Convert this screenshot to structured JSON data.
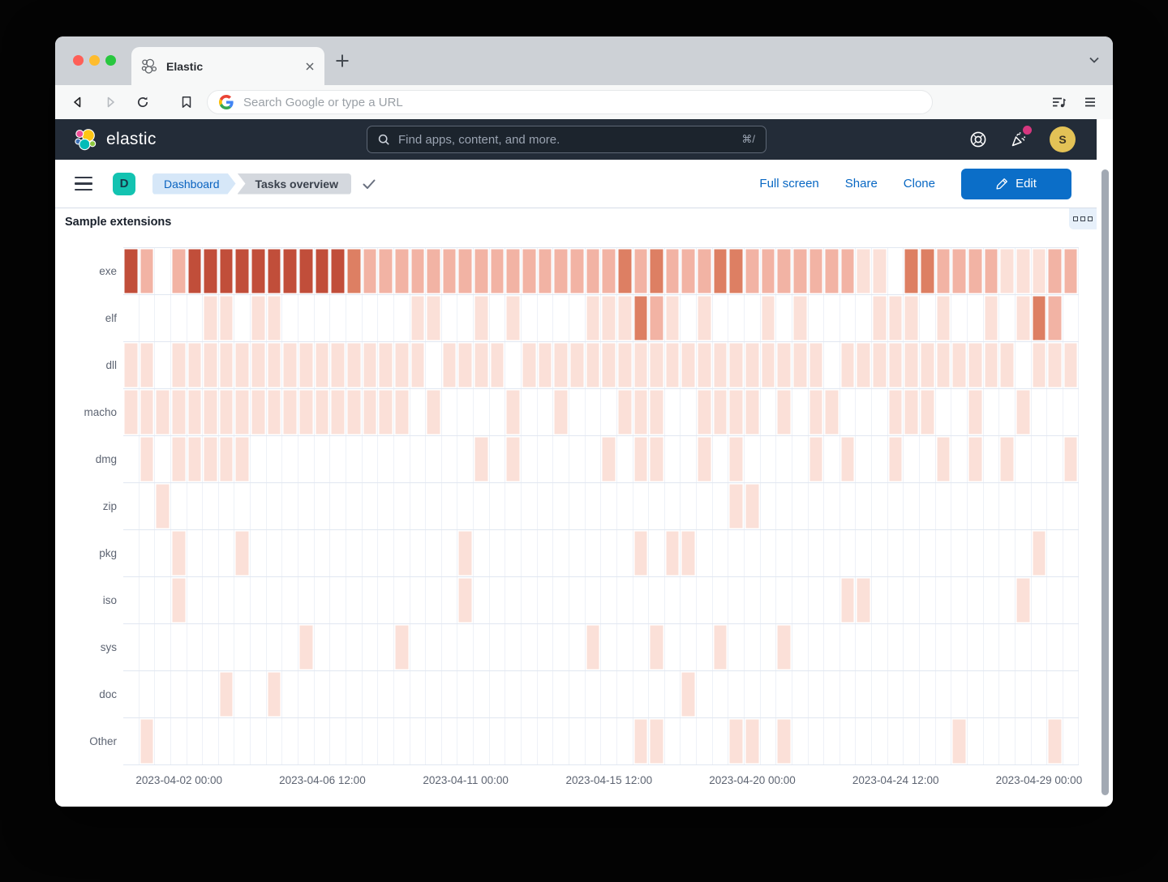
{
  "browser": {
    "tab_title": "Elastic",
    "address_placeholder": "Search Google or type a URL"
  },
  "elastic_header": {
    "brand": "elastic",
    "search_placeholder": "Find apps, content, and more.",
    "search_shortcut": "⌘/",
    "avatar_initial": "S"
  },
  "dashboard_bar": {
    "space_initial": "D",
    "breadcrumbs": [
      "Dashboard",
      "Tasks overview"
    ],
    "actions": [
      "Full screen",
      "Share",
      "Clone"
    ],
    "edit_label": "Edit"
  },
  "panel": {
    "title": "Sample extensions"
  },
  "chart_data": {
    "type": "heatmap",
    "title": "Sample extensions",
    "rows": [
      "exe",
      "elf",
      "dll",
      "macho",
      "dmg",
      "zip",
      "pkg",
      "iso",
      "sys",
      "doc",
      "Other"
    ],
    "columns": 60,
    "bucket_interval": "12h",
    "x_axis_ticks": [
      "2023-04-02 00:00",
      "2023-04-06 12:00",
      "2023-04-11 00:00",
      "2023-04-15 12:00",
      "2023-04-20 00:00",
      "2023-04-24 12:00",
      "2023-04-29 00:00"
    ],
    "x_tick_columns": [
      3,
      12,
      21,
      30,
      39,
      48,
      57
    ],
    "intensity_scale": "0=none 1=low 2=medium 3=high 4=highest",
    "palette": {
      "0": "#ffffff",
      "1": "#fbe0d8",
      "2": "#f2b3a4",
      "3": "#dd7f63",
      "4": "#c14e3a"
    },
    "values": {
      "exe": [
        4,
        2,
        0,
        2,
        4,
        4,
        4,
        4,
        4,
        4,
        4,
        4,
        4,
        4,
        3,
        2,
        2,
        2,
        2,
        2,
        2,
        2,
        2,
        2,
        2,
        2,
        2,
        2,
        2,
        2,
        2,
        3,
        2,
        3,
        2,
        2,
        2,
        3,
        3,
        2,
        2,
        2,
        2,
        2,
        2,
        2,
        1,
        1,
        0,
        3,
        3,
        2,
        2,
        2,
        2,
        1,
        1,
        1,
        2,
        2
      ],
      "elf": [
        0,
        0,
        0,
        0,
        0,
        1,
        1,
        0,
        1,
        1,
        0,
        0,
        0,
        0,
        0,
        0,
        0,
        0,
        1,
        1,
        0,
        0,
        1,
        0,
        1,
        0,
        0,
        0,
        0,
        1,
        1,
        1,
        3,
        2,
        1,
        0,
        1,
        0,
        0,
        0,
        1,
        0,
        1,
        0,
        0,
        0,
        0,
        1,
        1,
        1,
        0,
        1,
        0,
        0,
        1,
        0,
        1,
        3,
        2,
        0
      ],
      "dll": [
        1,
        1,
        0,
        1,
        1,
        1,
        1,
        1,
        1,
        1,
        1,
        1,
        1,
        1,
        1,
        1,
        1,
        1,
        1,
        0,
        1,
        1,
        1,
        1,
        0,
        1,
        1,
        1,
        1,
        1,
        1,
        1,
        1,
        1,
        1,
        1,
        1,
        1,
        1,
        1,
        1,
        1,
        1,
        1,
        0,
        1,
        1,
        1,
        1,
        1,
        1,
        1,
        1,
        1,
        1,
        1,
        0,
        1,
        1,
        1
      ],
      "macho": [
        1,
        1,
        1,
        1,
        1,
        1,
        1,
        1,
        1,
        1,
        1,
        1,
        1,
        1,
        1,
        1,
        1,
        1,
        0,
        1,
        0,
        0,
        0,
        0,
        1,
        0,
        0,
        1,
        0,
        0,
        0,
        1,
        1,
        1,
        0,
        0,
        1,
        1,
        1,
        1,
        0,
        1,
        0,
        1,
        1,
        0,
        0,
        0,
        1,
        1,
        1,
        0,
        0,
        1,
        0,
        0,
        1,
        0,
        0,
        0
      ],
      "dmg": [
        0,
        1,
        0,
        1,
        1,
        1,
        1,
        1,
        0,
        0,
        0,
        0,
        0,
        0,
        0,
        0,
        0,
        0,
        0,
        0,
        0,
        0,
        1,
        0,
        1,
        0,
        0,
        0,
        0,
        0,
        1,
        0,
        1,
        1,
        0,
        0,
        1,
        0,
        1,
        0,
        0,
        0,
        0,
        1,
        0,
        1,
        0,
        0,
        1,
        0,
        0,
        1,
        0,
        1,
        0,
        1,
        0,
        0,
        0,
        1
      ],
      "zip": [
        0,
        0,
        1,
        0,
        0,
        0,
        0,
        0,
        0,
        0,
        0,
        0,
        0,
        0,
        0,
        0,
        0,
        0,
        0,
        0,
        0,
        0,
        0,
        0,
        0,
        0,
        0,
        0,
        0,
        0,
        0,
        0,
        0,
        0,
        0,
        0,
        0,
        0,
        1,
        1,
        0,
        0,
        0,
        0,
        0,
        0,
        0,
        0,
        0,
        0,
        0,
        0,
        0,
        0,
        0,
        0,
        0,
        0,
        0,
        0
      ],
      "pkg": [
        0,
        0,
        0,
        1,
        0,
        0,
        0,
        1,
        0,
        0,
        0,
        0,
        0,
        0,
        0,
        0,
        0,
        0,
        0,
        0,
        0,
        1,
        0,
        0,
        0,
        0,
        0,
        0,
        0,
        0,
        0,
        0,
        1,
        0,
        1,
        1,
        0,
        0,
        0,
        0,
        0,
        0,
        0,
        0,
        0,
        0,
        0,
        0,
        0,
        0,
        0,
        0,
        0,
        0,
        0,
        0,
        0,
        1,
        0,
        0
      ],
      "iso": [
        0,
        0,
        0,
        1,
        0,
        0,
        0,
        0,
        0,
        0,
        0,
        0,
        0,
        0,
        0,
        0,
        0,
        0,
        0,
        0,
        0,
        1,
        0,
        0,
        0,
        0,
        0,
        0,
        0,
        0,
        0,
        0,
        0,
        0,
        0,
        0,
        0,
        0,
        0,
        0,
        0,
        0,
        0,
        0,
        0,
        1,
        1,
        0,
        0,
        0,
        0,
        0,
        0,
        0,
        0,
        0,
        1,
        0,
        0,
        0
      ],
      "sys": [
        0,
        0,
        0,
        0,
        0,
        0,
        0,
        0,
        0,
        0,
        0,
        1,
        0,
        0,
        0,
        0,
        0,
        1,
        0,
        0,
        0,
        0,
        0,
        0,
        0,
        0,
        0,
        0,
        0,
        1,
        0,
        0,
        0,
        1,
        0,
        0,
        0,
        1,
        0,
        0,
        0,
        1,
        0,
        0,
        0,
        0,
        0,
        0,
        0,
        0,
        0,
        0,
        0,
        0,
        0,
        0,
        0,
        0,
        0,
        0
      ],
      "doc": [
        0,
        0,
        0,
        0,
        0,
        0,
        1,
        0,
        0,
        1,
        0,
        0,
        0,
        0,
        0,
        0,
        0,
        0,
        0,
        0,
        0,
        0,
        0,
        0,
        0,
        0,
        0,
        0,
        0,
        0,
        0,
        0,
        0,
        0,
        0,
        1,
        0,
        0,
        0,
        0,
        0,
        0,
        0,
        0,
        0,
        0,
        0,
        0,
        0,
        0,
        0,
        0,
        0,
        0,
        0,
        0,
        0,
        0,
        0,
        0
      ],
      "Other": [
        0,
        1,
        0,
        0,
        0,
        0,
        0,
        0,
        0,
        0,
        0,
        0,
        0,
        0,
        0,
        0,
        0,
        0,
        0,
        0,
        0,
        0,
        0,
        0,
        0,
        0,
        0,
        0,
        0,
        0,
        0,
        0,
        1,
        1,
        0,
        0,
        0,
        0,
        1,
        1,
        0,
        1,
        0,
        0,
        0,
        0,
        0,
        0,
        0,
        0,
        0,
        0,
        1,
        0,
        0,
        0,
        0,
        0,
        1,
        0
      ]
    }
  }
}
